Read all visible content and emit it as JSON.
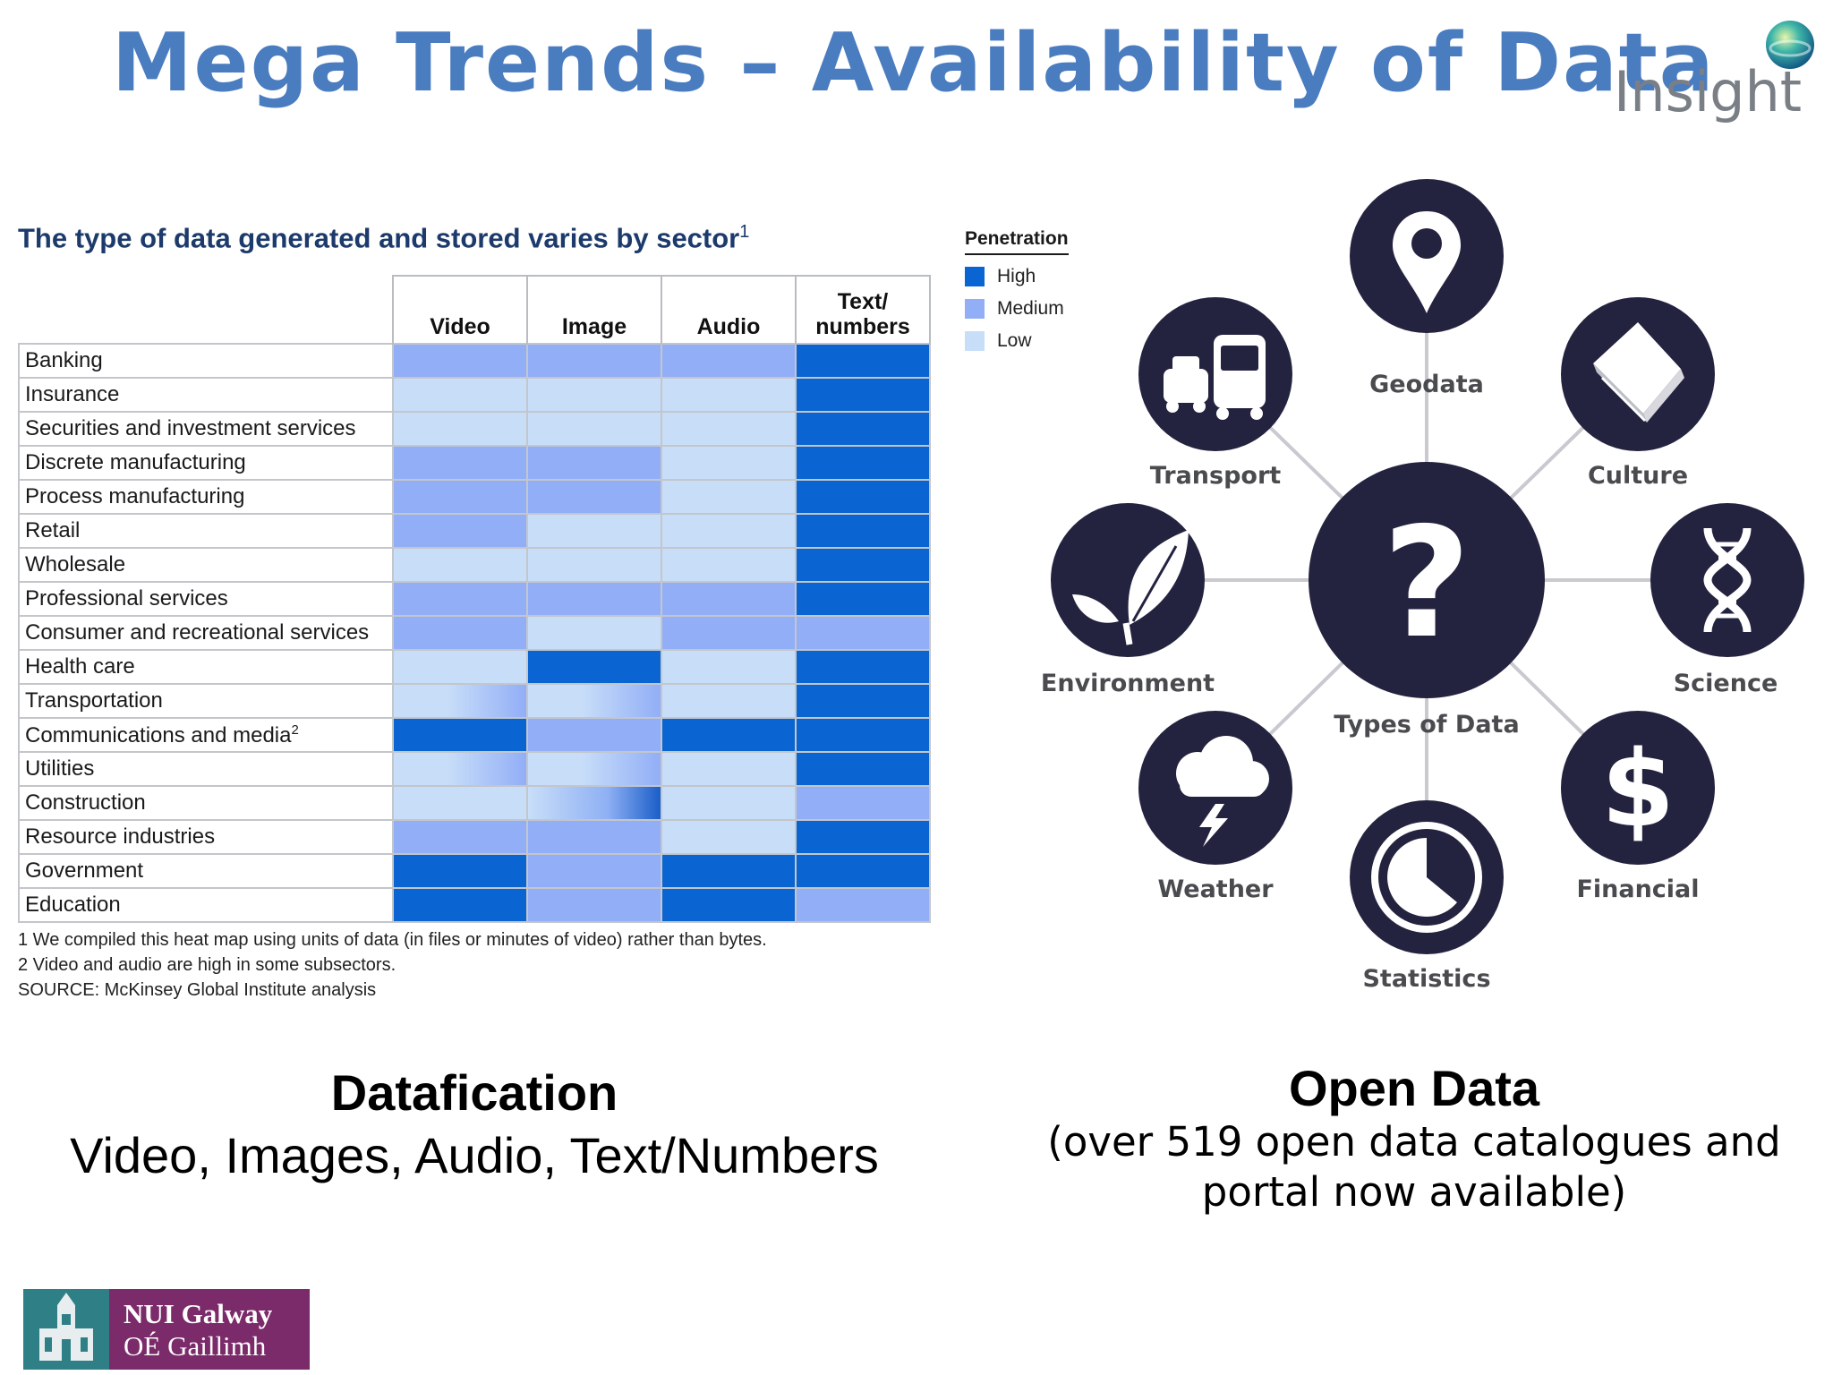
{
  "slide": {
    "title": "Mega Trends – Availability of Data",
    "logo_text": "Insight"
  },
  "heatmap": {
    "title": "The type of data generated and stored varies by sector",
    "title_sup": "1",
    "columns": [
      "Video",
      "Image",
      "Audio",
      "Text/ numbers"
    ],
    "column_lines": [
      [
        "Video"
      ],
      [
        "Image"
      ],
      [
        "Audio"
      ],
      [
        "Text/",
        "numbers"
      ]
    ],
    "rows": [
      {
        "sector": "Banking",
        "levels": [
          "medium",
          "medium",
          "medium",
          "high"
        ]
      },
      {
        "sector": "Insurance",
        "levels": [
          "low",
          "low",
          "low",
          "high"
        ]
      },
      {
        "sector": "Securities and investment services",
        "levels": [
          "low",
          "low",
          "low",
          "high"
        ]
      },
      {
        "sector": "Discrete manufacturing",
        "levels": [
          "medium",
          "medium",
          "low",
          "high"
        ]
      },
      {
        "sector": "Process manufacturing",
        "levels": [
          "medium",
          "medium",
          "low",
          "high"
        ]
      },
      {
        "sector": "Retail",
        "levels": [
          "medium",
          "low",
          "low",
          "high"
        ]
      },
      {
        "sector": "Wholesale",
        "levels": [
          "low",
          "low",
          "low",
          "high"
        ]
      },
      {
        "sector": "Professional services",
        "levels": [
          "medium",
          "medium",
          "medium",
          "high"
        ]
      },
      {
        "sector": "Consumer and recreational services",
        "levels": [
          "medium",
          "low",
          "medium",
          "medium"
        ]
      },
      {
        "sector": "Health care",
        "levels": [
          "low",
          "high",
          "low",
          "high"
        ]
      },
      {
        "sector": "Transportation",
        "levels": [
          "low-medium",
          "low-medium",
          "low",
          "high"
        ]
      },
      {
        "sector": "Communications and media",
        "sup": "2",
        "levels": [
          "high",
          "medium",
          "high",
          "high"
        ]
      },
      {
        "sector": "Utilities",
        "levels": [
          "low-medium",
          "low-medium",
          "low",
          "high"
        ]
      },
      {
        "sector": "Construction",
        "levels": [
          "low",
          "low-high",
          "low",
          "medium"
        ]
      },
      {
        "sector": "Resource industries",
        "levels": [
          "medium",
          "medium",
          "low",
          "high"
        ]
      },
      {
        "sector": "Government",
        "levels": [
          "high",
          "medium",
          "high",
          "high"
        ]
      },
      {
        "sector": "Education",
        "levels": [
          "high",
          "medium",
          "high",
          "medium"
        ]
      }
    ],
    "legend": {
      "title": "Penetration",
      "items": [
        {
          "label": "High",
          "color": "#0a64d2"
        },
        {
          "label": "Medium",
          "color": "#92aef7"
        },
        {
          "label": "Low",
          "color": "#c8def8"
        }
      ]
    },
    "notes": [
      "1  We compiled this heat map using units of data (in files or minutes of video) rather than bytes.",
      "2  Video and audio are high in some subsectors.",
      "SOURCE: McKinsey Global Institute analysis"
    ]
  },
  "diagram": {
    "center_label": "Types of Data",
    "center_symbol": "?",
    "nodes": [
      {
        "label": "Geodata",
        "icon": "map-pin-icon"
      },
      {
        "label": "Culture",
        "icon": "book-icon"
      },
      {
        "label": "Science",
        "icon": "dna-icon"
      },
      {
        "label": "Financial",
        "icon": "dollar-icon"
      },
      {
        "label": "Statistics",
        "icon": "pie-clock-icon"
      },
      {
        "label": "Weather",
        "icon": "storm-cloud-icon"
      },
      {
        "label": "Environment",
        "icon": "leaf-icon"
      },
      {
        "label": "Transport",
        "icon": "car-bus-icon"
      }
    ],
    "node_color": "#232340",
    "line_color": "#c9c9cf"
  },
  "captions": {
    "left_title": "Datafication",
    "left_sub": "Video, Images, Audio, Text/Numbers",
    "right_title": "Open Data",
    "right_sub_line1": "(over 519 open data catalogues and",
    "right_sub_line2": "portal now available)"
  },
  "footer": {
    "logo_line1": "NUI Galway",
    "logo_line2": "OÉ Gaillimh"
  }
}
